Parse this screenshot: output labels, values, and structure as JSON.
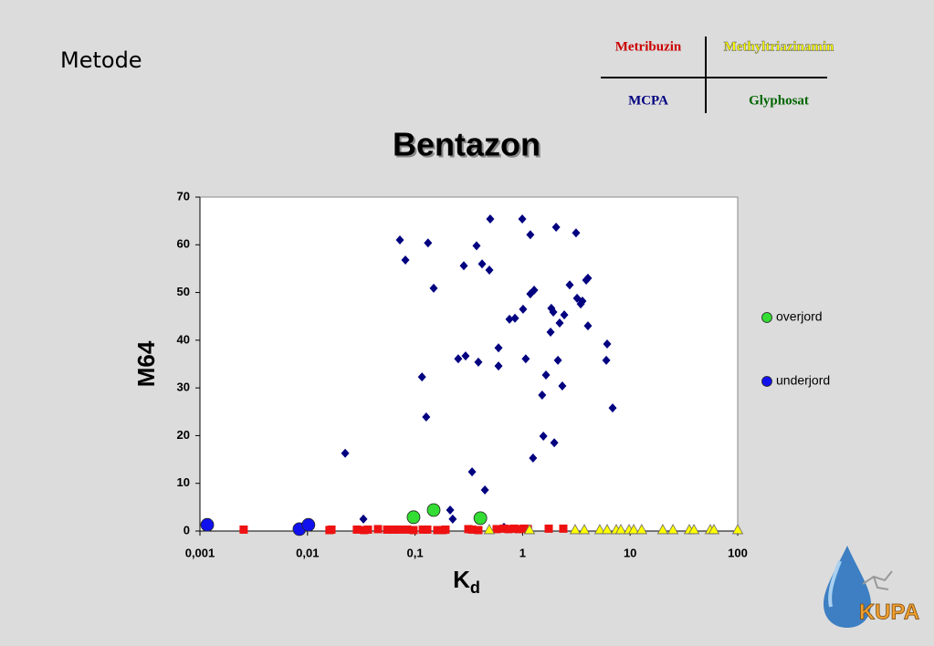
{
  "slide": {
    "heading": "Metode",
    "legend_table": {
      "rows": [
        [
          "Metribuzin",
          "Methyltriazinamin"
        ],
        [
          "MCPA",
          "Glyphosat"
        ]
      ],
      "colors": [
        [
          "#cc0000",
          "#ffff00"
        ],
        [
          "#000080",
          "#006600"
        ]
      ]
    },
    "logo": "KUPA"
  },
  "chart_data": {
    "type": "scatter",
    "title": "Bentazon",
    "y_label": "M64",
    "x_label": {
      "main": "K",
      "sub": "d"
    },
    "xscale": "log",
    "xlim": [
      0.001,
      100
    ],
    "ylim": [
      0,
      70
    ],
    "xticks": [
      {
        "value": 0.001,
        "label": "0,001"
      },
      {
        "value": 0.01,
        "label": "0,01"
      },
      {
        "value": 0.1,
        "label": "0,1"
      },
      1,
      10,
      100
    ],
    "yticks": [
      0,
      10,
      20,
      30,
      40,
      50,
      60,
      70
    ],
    "series": [
      {
        "marker": "diamond",
        "color": "#000080",
        "x": [
          0.0224,
          0.0331,
          0.0723,
          0.0813,
          0.116,
          0.127,
          0.132,
          0.149,
          0.212,
          0.224,
          0.252,
          0.284,
          0.295,
          0.339,
          0.373,
          0.388,
          0.42,
          0.446,
          0.491,
          0.5,
          0.597,
          0.597,
          0.671,
          0.755,
          0.849,
          0.993,
          1.01,
          1.07,
          1.18,
          1.18,
          1.25,
          1.28,
          1.52,
          1.56,
          1.65,
          1.82,
          1.85,
          1.93,
          1.97,
          2.05,
          2.13,
          2.21,
          2.34,
          2.44,
          2.74,
          3.14,
          3.21,
          3.47,
          3.6,
          3.9,
          4.05,
          4.05,
          6.0,
          6.11,
          6.87
        ],
        "values": [
          16.3,
          2.5,
          61.0,
          56.8,
          32.3,
          23.9,
          60.4,
          50.9,
          4.4,
          2.5,
          36.1,
          55.6,
          36.7,
          12.4,
          59.8,
          35.4,
          56.0,
          8.6,
          54.7,
          65.4,
          38.4,
          34.6,
          0.8,
          44.4,
          44.6,
          65.4,
          46.5,
          36.1,
          62.1,
          49.7,
          15.3,
          50.5,
          28.5,
          19.9,
          32.7,
          41.7,
          46.7,
          45.9,
          18.5,
          63.7,
          35.8,
          43.6,
          30.4,
          45.3,
          51.6,
          62.5,
          48.8,
          47.6,
          48.2,
          52.6,
          53.0,
          43.0,
          35.8,
          39.2,
          25.8
        ]
      },
      {
        "marker": "square",
        "color": "#ee1111",
        "x": [
          0.00255,
          0.016,
          0.0167,
          0.0288,
          0.0337,
          0.0365,
          0.0452,
          0.055,
          0.0631,
          0.071,
          0.0845,
          0.0968,
          0.118,
          0.13,
          0.161,
          0.181,
          0.192,
          0.313,
          0.339,
          0.388,
          0.574,
          0.671,
          0.74,
          0.832,
          0.918,
          1.03,
          1.12,
          1.75,
          2.39
        ],
        "values": [
          0.3,
          0.2,
          0.3,
          0.3,
          0.2,
          0.3,
          0.4,
          0.3,
          0.3,
          0.3,
          0.3,
          0.2,
          0.3,
          0.3,
          0.2,
          0.2,
          0.3,
          0.4,
          0.3,
          0.2,
          0.4,
          0.5,
          0.4,
          0.5,
          0.4,
          0.5,
          0.4,
          0.5,
          0.5
        ]
      },
      {
        "marker": "triangle",
        "color": "#ffff00",
        "x": [
          0.49,
          1.16,
          3.08,
          3.75,
          5.22,
          6.11,
          7.43,
          8.19,
          9.77,
          10.8,
          12.8,
          20.1,
          25.0,
          35.5,
          39.2,
          55.6,
          60.1,
          100
        ],
        "values": [
          0.2,
          0.2,
          0.2,
          0.2,
          0.2,
          0.2,
          0.2,
          0.2,
          0.2,
          0.2,
          0.2,
          0.2,
          0.2,
          0.2,
          0.2,
          0.2,
          0.2,
          0.2
        ]
      },
      {
        "name": "overjord",
        "marker": "circle",
        "color": "#33dd33",
        "x": [
          0.0968,
          0.149,
          0.405
        ],
        "values": [
          2.9,
          4.4,
          2.7
        ]
      },
      {
        "name": "underjord",
        "marker": "circle",
        "color": "#1111ee",
        "x": [
          0.00117,
          0.00841,
          0.0102
        ],
        "values": [
          1.3,
          0.4,
          1.3
        ]
      }
    ]
  }
}
